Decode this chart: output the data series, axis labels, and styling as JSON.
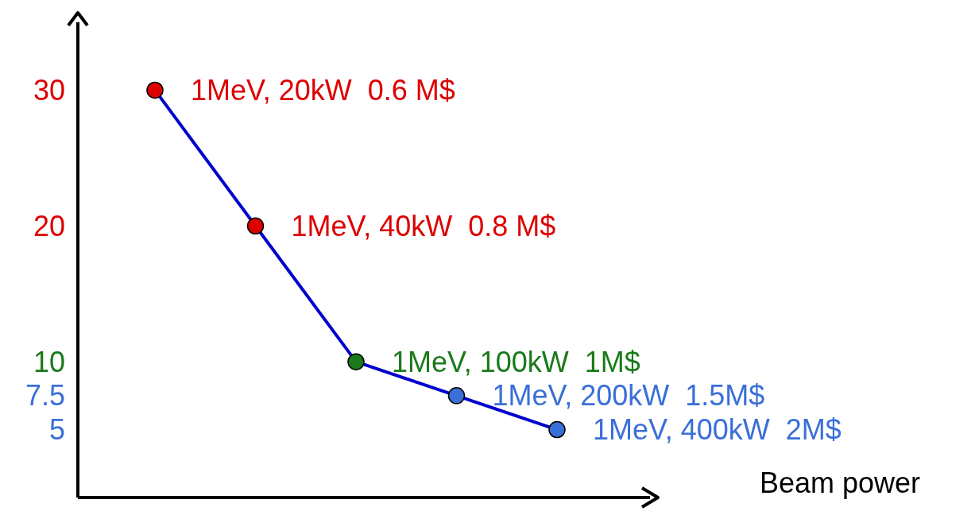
{
  "chart_data": {
    "type": "line",
    "xlabel": "Beam power",
    "tick_labels": "y",
    "categories": [
      null,
      null,
      null,
      null,
      null
    ],
    "ylim": [
      0,
      35
    ],
    "yticks": [
      30,
      20,
      10,
      7.5,
      5
    ],
    "marker": "circle",
    "series": [
      {
        "color": "#0000cc",
        "colors": [
          "#dd0000",
          "#dd0000",
          "#1a7a1a",
          "#3a6fd8",
          "#3a6fd8"
        ],
        "values": [
          30,
          20,
          10,
          7.5,
          5
        ]
      }
    ],
    "annotations": [
      "1MeV, 20kW  0.6 M$",
      "1MeV, 40kW  0.8 M$",
      "1MeV, 100kW  1M$",
      "1MeV, 200kW  1.5M$",
      "1MeV, 400kW  2M$"
    ]
  }
}
